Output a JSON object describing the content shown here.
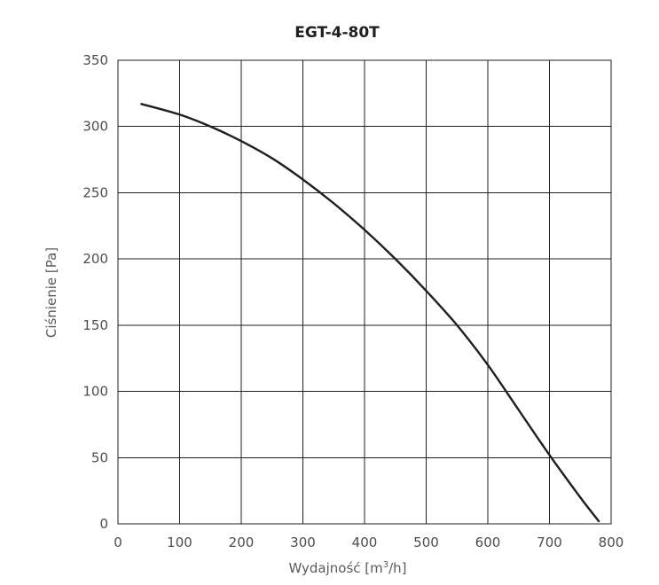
{
  "chart_data": {
    "type": "line",
    "title": "EGT-4-80T",
    "xlabel": {
      "main": "Wydajność [m",
      "sup": "3",
      "tail": "/h]"
    },
    "ylabel": "Ciśnienie [Pa]",
    "xlim": [
      0,
      800
    ],
    "ylim": [
      0,
      350
    ],
    "x_ticks": [
      "0",
      "100",
      "200",
      "300",
      "400",
      "500",
      "600",
      "700",
      "800"
    ],
    "y_ticks": [
      "0",
      "50",
      "100",
      "150",
      "200",
      "250",
      "300",
      "350"
    ],
    "grid": true,
    "series": [
      {
        "x": [
          38,
          100,
          150,
          200,
          250,
          300,
          350,
          400,
          450,
          500,
          550,
          600,
          650,
          700,
          750,
          780
        ],
        "y": [
          317,
          309,
          300,
          289,
          276,
          260,
          242,
          222,
          200,
          176,
          150,
          120,
          86,
          52,
          20,
          2
        ]
      }
    ]
  },
  "colors": {
    "background": "#ffffff",
    "grid": "#1f1f1f",
    "line": "#1f1f1f",
    "tick_text": "#4d4d4d",
    "title_text": "#1f1f1f"
  }
}
